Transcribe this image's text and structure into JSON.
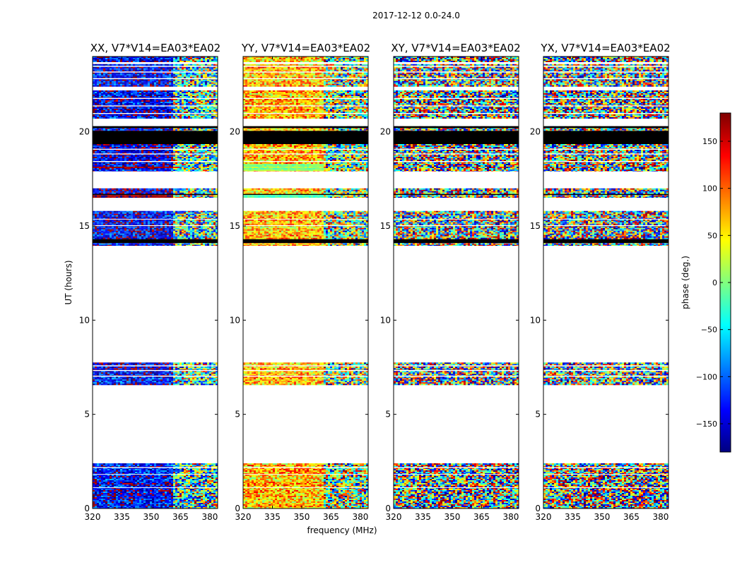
{
  "figure": {
    "suptitle": "2017-12-12 0.0-24.0"
  },
  "chart_data": [
    {
      "type": "heatmap",
      "title": "XX, V7*V14=EA03*EA02",
      "xlabel": "",
      "ylabel": "UT (hours)",
      "x_ticks": [
        "320",
        "335",
        "350",
        "365",
        "380"
      ],
      "y_ticks": [
        "0",
        "5",
        "10",
        "15",
        "20"
      ],
      "xlim": [
        320,
        384
      ],
      "ylim": [
        0,
        24
      ],
      "bias": -140,
      "noise": 60,
      "warm_bands": [
        [
          18.1,
          18.2,
          175,
          0.25
        ],
        [
          16.55,
          16.75,
          170,
          0.3
        ]
      ]
    },
    {
      "type": "heatmap",
      "title": "YY, V7*V14=EA03*EA02",
      "xlabel": "frequency (MHz)",
      "ylabel": "",
      "x_ticks": [
        "320",
        "335",
        "350",
        "365",
        "380"
      ],
      "y_ticks": [
        "0",
        "5",
        "10",
        "15",
        "20"
      ],
      "xlim": [
        320,
        384
      ],
      "ylim": [
        0,
        24
      ],
      "bias": 70,
      "noise": 60,
      "warm_bands": [
        [
          18.0,
          18.3,
          10,
          0.25
        ],
        [
          16.55,
          16.75,
          -20,
          0.3
        ]
      ]
    },
    {
      "type": "heatmap",
      "title": "XY, V7*V14=EA03*EA02",
      "xlabel": "",
      "ylabel": "",
      "x_ticks": [
        "320",
        "335",
        "350",
        "365",
        "380"
      ],
      "y_ticks": [
        "0",
        "5",
        "10",
        "15",
        "20"
      ],
      "xlim": [
        320,
        384
      ],
      "ylim": [
        0,
        24
      ],
      "bias": null,
      "noise": 180,
      "warm_bands": []
    },
    {
      "type": "heatmap",
      "title": "YX, V7*V14=EA03*EA02",
      "xlabel": "",
      "ylabel": "",
      "x_ticks": [
        "320",
        "335",
        "350",
        "365",
        "380"
      ],
      "y_ticks": [
        "0",
        "5",
        "10",
        "15",
        "20"
      ],
      "xlim": [
        320,
        384
      ],
      "ylim": [
        0,
        24
      ],
      "bias": null,
      "noise": 180,
      "warm_bands": []
    }
  ],
  "shared_layout": {
    "data_bands_hours": [
      [
        0,
        2.4
      ],
      [
        6.55,
        7.75
      ],
      [
        13.95,
        15.8
      ],
      [
        16.5,
        17.0
      ],
      [
        17.9,
        19.35
      ],
      [
        19.75,
        20.3
      ],
      [
        20.7,
        22.2
      ],
      [
        22.4,
        23.6
      ],
      [
        23.7,
        24
      ]
    ],
    "black_bands_hours": [
      [
        19.35,
        20.05
      ],
      [
        20.2,
        20.3
      ],
      [
        14.1,
        14.3
      ],
      [
        16.65,
        16.7
      ]
    ],
    "white_gaps_hours": [
      [
        2.15,
        2.2
      ],
      [
        1.8,
        1.83
      ],
      [
        1.1,
        1.13
      ],
      [
        7.0,
        7.05
      ],
      [
        7.3,
        7.35
      ],
      [
        7.55,
        7.6
      ],
      [
        15.0,
        15.04
      ],
      [
        15.35,
        15.38
      ],
      [
        18.4,
        18.45
      ],
      [
        18.8,
        18.85
      ],
      [
        19.05,
        19.1
      ],
      [
        20.95,
        21.0
      ],
      [
        21.35,
        21.4
      ],
      [
        21.75,
        21.8
      ],
      [
        22.8,
        22.85
      ],
      [
        23.15,
        23.2
      ],
      [
        23.45,
        23.5
      ]
    ],
    "texture_change_mhz": 361
  },
  "colorbar": {
    "label": "phase (deg.)",
    "ticks": [
      "150",
      "100",
      "50",
      "0",
      "−50",
      "−100",
      "−150"
    ],
    "tick_values": [
      150,
      100,
      50,
      0,
      -50,
      -100,
      -150
    ],
    "range": [
      -180,
      180
    ],
    "colormap": "jet"
  }
}
